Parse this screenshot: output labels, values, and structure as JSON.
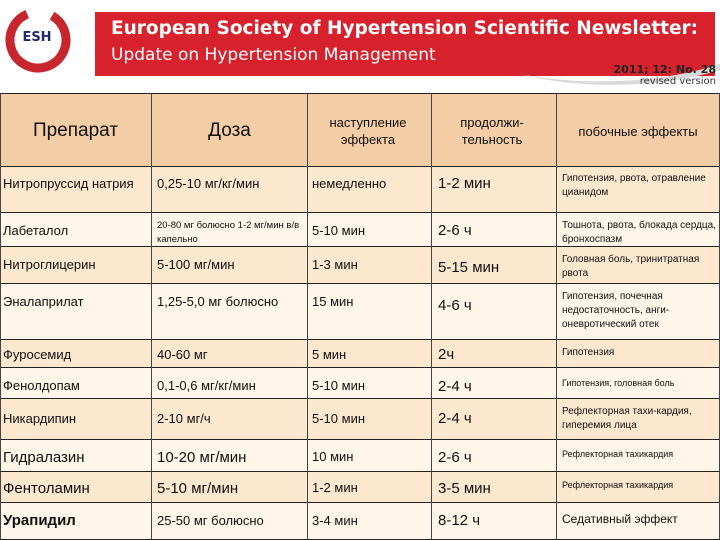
{
  "header": {
    "logo_text": "ESH",
    "banner_line1": "European Society of Hypertension Scientific Newsletter:",
    "banner_line2": "Update on Hypertension Management",
    "version": "2011; 12: No. 28",
    "revised": "revised version",
    "colors": {
      "banner": "#d7212c",
      "logo_ring": "#c8262e",
      "logo_text": "#1f2a6a"
    }
  },
  "table": {
    "headers": {
      "drug": "Препарат",
      "dose": "Доза",
      "onset": "наступление эффекта",
      "duration": "продолжи-тельность",
      "side_effects": "побочные эффекты"
    },
    "rows": [
      {
        "drug": "Нитропруссид натрия",
        "dose": "0,25-10 мг/кг/мин",
        "onset": "немедленно",
        "duration": "1-2 мин",
        "side_effects": "Гипотензия, рвота, отравление цианидом"
      },
      {
        "drug": "Лабеталол",
        "dose": "20-80 мг болюсно 1-2 мг/мин в/в капельно",
        "onset": "5-10 мин",
        "duration": "2-6 ч",
        "side_effects": "Тошнота, рвота, блокада сердца, бронхоспазм"
      },
      {
        "drug": "Нитроглицерин",
        "dose": "5-100 мг/мин",
        "onset": "1-3 мин",
        "duration": "5-15 мин",
        "side_effects": "Головная боль, тринитратная рвота"
      },
      {
        "drug": "Эналаприлат",
        "dose": "1,25-5,0 мг болюсно",
        "onset": "15 мин",
        "duration": "4-6 ч",
        "side_effects": "Гипотензия, почечная недостаточность, анги-оневротический отек"
      },
      {
        "drug": "Фуросемид",
        "dose": "40-60 мг",
        "onset": "5 мин",
        "duration": "2ч",
        "side_effects": "Гипотензия"
      },
      {
        "drug": "Фенолдопам",
        "dose": "0,1-0,6 мг/кг/мин",
        "onset": "5-10 мин",
        "duration": "2-4 ч",
        "side_effects": "Гипотензия, головная боль"
      },
      {
        "drug": "Никардипин",
        "dose": "2-10 мг/ч",
        "onset": "5-10 мин",
        "duration": "2-4 ч",
        "side_effects": "Рефлекторная тахи-кардия, гиперемия лица"
      },
      {
        "drug": "Гидралазин",
        "dose": "10-20 мг/мин",
        "onset": "10 мин",
        "duration": "2-6 ч",
        "side_effects": "Рефлекторная тахикардия"
      },
      {
        "drug": "Фентоламин",
        "dose": "5-10 мг/мин",
        "onset": "1-2 мин",
        "duration": "3-5 мин",
        "side_effects": "Рефлекторная тахикардия"
      },
      {
        "drug": "Урапидил",
        "dose": "25-50 мг болюсно",
        "onset": "3-4 мин",
        "duration": "8-12 ч",
        "side_effects": "Седативный эффект"
      }
    ]
  }
}
